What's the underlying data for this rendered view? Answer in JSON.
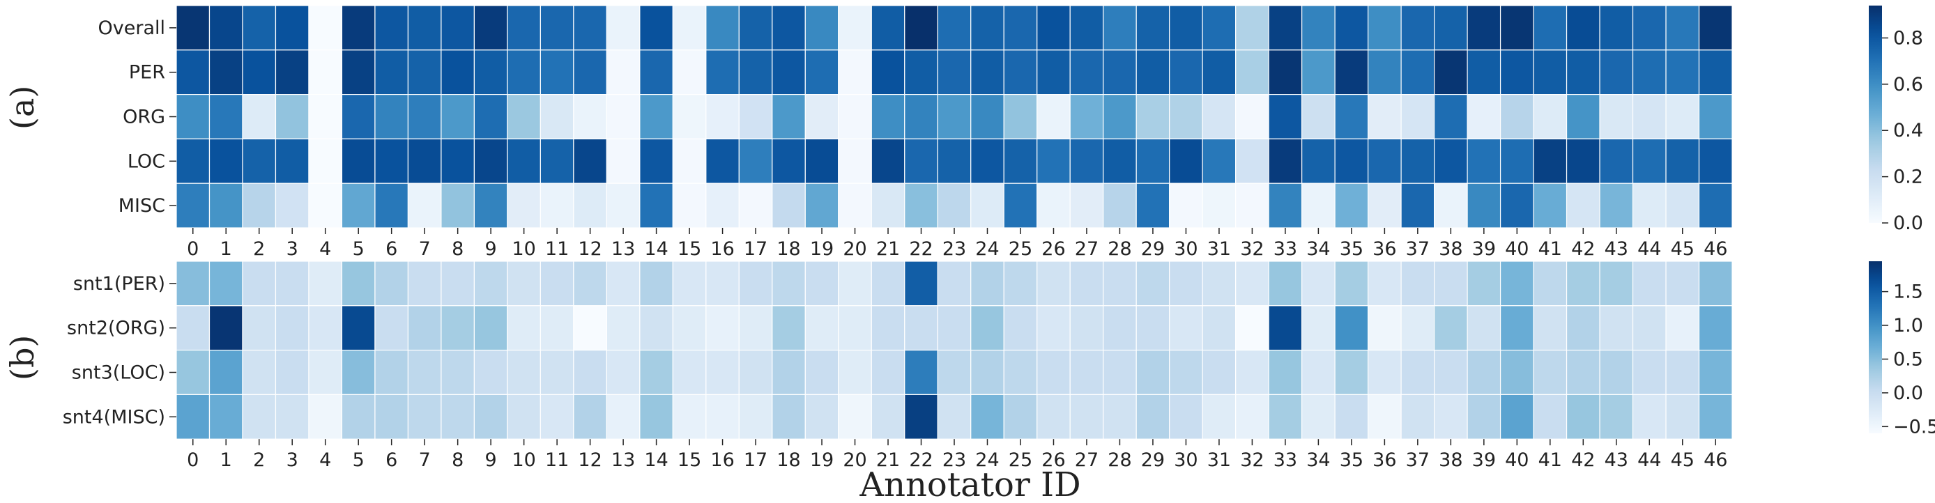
{
  "chart_data": [
    {
      "type": "heatmap",
      "panel_label": "(a)",
      "rows": [
        "Overall",
        "PER",
        "ORG",
        "LOC",
        "MISC"
      ],
      "columns": [
        "0",
        "1",
        "2",
        "3",
        "4",
        "5",
        "6",
        "7",
        "8",
        "9",
        "10",
        "11",
        "12",
        "13",
        "14",
        "15",
        "16",
        "17",
        "18",
        "19",
        "20",
        "21",
        "22",
        "23",
        "24",
        "25",
        "26",
        "27",
        "28",
        "29",
        "30",
        "31",
        "32",
        "33",
        "34",
        "35",
        "36",
        "37",
        "38",
        "39",
        "40",
        "41",
        "42",
        "43",
        "44",
        "45",
        "46"
      ],
      "values": [
        [
          0.92,
          0.86,
          0.76,
          0.82,
          0.0,
          0.9,
          0.8,
          0.78,
          0.8,
          0.9,
          0.74,
          0.74,
          0.74,
          0.06,
          0.82,
          0.06,
          0.62,
          0.76,
          0.8,
          0.62,
          0.06,
          0.78,
          0.94,
          0.72,
          0.76,
          0.74,
          0.82,
          0.78,
          0.66,
          0.76,
          0.78,
          0.72,
          0.3,
          0.88,
          0.64,
          0.8,
          0.6,
          0.74,
          0.76,
          0.9,
          0.92,
          0.72,
          0.84,
          0.78,
          0.74,
          0.68,
          0.92
        ],
        [
          0.8,
          0.88,
          0.82,
          0.88,
          0.0,
          0.88,
          0.78,
          0.76,
          0.82,
          0.78,
          0.72,
          0.7,
          0.74,
          0.02,
          0.74,
          0.02,
          0.72,
          0.76,
          0.8,
          0.72,
          0.02,
          0.82,
          0.78,
          0.74,
          0.78,
          0.74,
          0.78,
          0.74,
          0.74,
          0.78,
          0.74,
          0.78,
          0.32,
          0.92,
          0.56,
          0.9,
          0.64,
          0.72,
          0.92,
          0.78,
          0.8,
          0.78,
          0.78,
          0.74,
          0.72,
          0.7,
          0.78
        ],
        [
          0.6,
          0.68,
          0.12,
          0.38,
          0.0,
          0.74,
          0.64,
          0.66,
          0.56,
          0.72,
          0.36,
          0.14,
          0.06,
          0.02,
          0.56,
          0.04,
          0.08,
          0.18,
          0.56,
          0.1,
          0.02,
          0.6,
          0.64,
          0.56,
          0.62,
          0.38,
          0.06,
          0.46,
          0.56,
          0.32,
          0.3,
          0.16,
          0.02,
          0.8,
          0.2,
          0.68,
          0.1,
          0.16,
          0.72,
          0.08,
          0.28,
          0.12,
          0.58,
          0.14,
          0.16,
          0.12,
          0.56
        ],
        [
          0.78,
          0.82,
          0.76,
          0.78,
          0.0,
          0.84,
          0.82,
          0.84,
          0.82,
          0.86,
          0.78,
          0.76,
          0.86,
          0.02,
          0.8,
          0.02,
          0.8,
          0.66,
          0.8,
          0.84,
          0.02,
          0.86,
          0.74,
          0.76,
          0.8,
          0.76,
          0.7,
          0.74,
          0.78,
          0.72,
          0.84,
          0.68,
          0.18,
          0.9,
          0.76,
          0.8,
          0.74,
          0.76,
          0.8,
          0.7,
          0.72,
          0.88,
          0.86,
          0.74,
          0.72,
          0.76,
          0.8
        ],
        [
          0.66,
          0.58,
          0.28,
          0.18,
          0.0,
          0.5,
          0.68,
          0.06,
          0.38,
          0.64,
          0.1,
          0.06,
          0.12,
          0.06,
          0.7,
          0.02,
          0.08,
          0.02,
          0.24,
          0.5,
          0.02,
          0.14,
          0.4,
          0.26,
          0.12,
          0.7,
          0.06,
          0.1,
          0.28,
          0.7,
          0.02,
          0.04,
          0.02,
          0.64,
          0.06,
          0.46,
          0.1,
          0.74,
          0.06,
          0.62,
          0.74,
          0.48,
          0.16,
          0.44,
          0.12,
          0.16,
          0.72
        ]
      ],
      "colorbar": {
        "min": 0,
        "max": 0.94,
        "ticks": [
          "0.0",
          "0.2",
          "0.4",
          "0.6",
          "0.8"
        ],
        "tick_values": [
          0,
          0.2,
          0.4,
          0.6,
          0.8
        ]
      },
      "colormap": "Blues"
    },
    {
      "type": "heatmap",
      "panel_label": "(b)",
      "rows": [
        "snt1(PER)",
        "snt2(ORG)",
        "snt3(LOC)",
        "snt4(MISC)"
      ],
      "columns": [
        "0",
        "1",
        "2",
        "3",
        "4",
        "5",
        "6",
        "7",
        "8",
        "9",
        "10",
        "11",
        "12",
        "13",
        "14",
        "15",
        "16",
        "17",
        "18",
        "19",
        "20",
        "21",
        "22",
        "23",
        "24",
        "25",
        "26",
        "27",
        "28",
        "29",
        "30",
        "31",
        "32",
        "33",
        "34",
        "35",
        "36",
        "37",
        "38",
        "39",
        "40",
        "41",
        "42",
        "43",
        "44",
        "45",
        "46"
      ],
      "values": [
        [
          0.5,
          0.6,
          0.0,
          0.0,
          -0.3,
          0.4,
          0.2,
          0.0,
          0.0,
          0.1,
          -0.1,
          0.0,
          0.1,
          -0.2,
          0.2,
          -0.2,
          -0.2,
          0.0,
          0.1,
          0.0,
          -0.3,
          0.0,
          1.5,
          0.0,
          0.2,
          0.1,
          -0.1,
          0.0,
          0.0,
          0.1,
          0.0,
          -0.1,
          -0.2,
          0.4,
          -0.2,
          0.3,
          -0.2,
          0.0,
          0.0,
          0.3,
          0.6,
          0.1,
          0.3,
          0.3,
          0.0,
          0.0,
          0.5
        ],
        [
          0.0,
          1.9,
          -0.1,
          0.0,
          -0.2,
          1.7,
          0.0,
          0.2,
          0.3,
          0.4,
          -0.3,
          -0.3,
          -0.6,
          -0.3,
          -0.1,
          -0.3,
          -0.4,
          -0.3,
          0.3,
          -0.3,
          -0.3,
          0.0,
          0.0,
          0.0,
          0.4,
          0.0,
          -0.2,
          -0.1,
          0.0,
          0.0,
          -0.2,
          -0.1,
          -0.6,
          1.7,
          -0.3,
          1.0,
          -0.5,
          -0.3,
          0.3,
          -0.1,
          0.7,
          -0.1,
          0.2,
          -0.1,
          -0.1,
          -0.4,
          0.7
        ],
        [
          0.4,
          0.8,
          -0.1,
          0.0,
          -0.3,
          0.5,
          0.2,
          0.1,
          0.1,
          0.0,
          -0.1,
          -0.1,
          0.0,
          -0.2,
          0.3,
          -0.2,
          -0.2,
          -0.1,
          0.2,
          0.0,
          -0.3,
          0.0,
          1.2,
          0.1,
          0.2,
          0.1,
          0.0,
          0.0,
          0.0,
          0.2,
          0.1,
          0.0,
          -0.2,
          0.4,
          -0.2,
          0.3,
          -0.2,
          0.0,
          0.0,
          0.2,
          0.5,
          0.1,
          0.2,
          0.2,
          0.0,
          0.0,
          0.6
        ],
        [
          0.8,
          0.7,
          -0.1,
          -0.1,
          -0.5,
          0.2,
          0.2,
          0.1,
          0.1,
          0.2,
          -0.1,
          -0.2,
          0.2,
          -0.4,
          0.4,
          -0.4,
          -0.4,
          -0.3,
          0.2,
          -0.1,
          -0.5,
          -0.1,
          1.8,
          -0.1,
          0.6,
          0.2,
          -0.1,
          -0.1,
          -0.1,
          0.2,
          0.0,
          -0.3,
          -0.4,
          0.3,
          -0.3,
          0.0,
          -0.5,
          -0.1,
          -0.2,
          0.2,
          0.8,
          0.0,
          0.4,
          0.3,
          -0.2,
          -0.1,
          0.6
        ]
      ],
      "colorbar": {
        "min": -0.6,
        "max": 1.95,
        "ticks": [
          "−0.5",
          "0.0",
          "0.5",
          "1.0",
          "1.5"
        ],
        "tick_values": [
          -0.5,
          0,
          0.5,
          1.0,
          1.5
        ]
      },
      "colormap": "Blues"
    }
  ],
  "xlabel": "Annotator ID"
}
